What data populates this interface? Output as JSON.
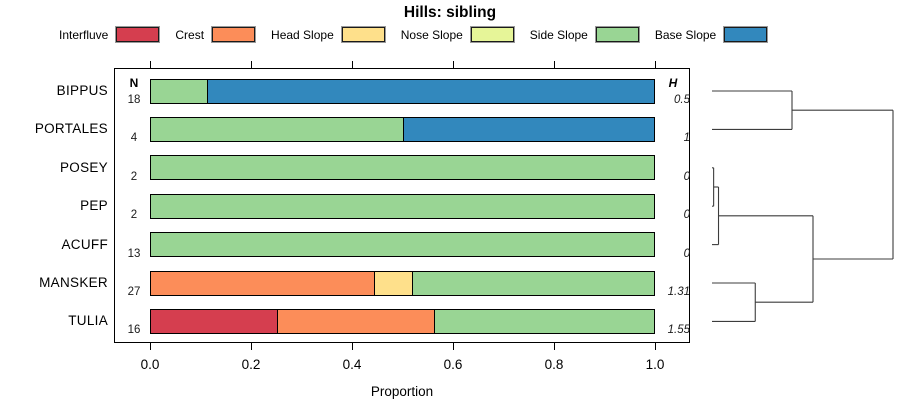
{
  "title": "Hills: sibling",
  "legend": {
    "items": [
      {
        "label": "Interfluve",
        "color": "#d53e4f"
      },
      {
        "label": "Crest",
        "color": "#fc8d59"
      },
      {
        "label": "Head Slope",
        "color": "#fee08b"
      },
      {
        "label": "Nose Slope",
        "color": "#e6f598"
      },
      {
        "label": "Side Slope",
        "color": "#99d594"
      },
      {
        "label": "Base Slope",
        "color": "#3288bd"
      }
    ]
  },
  "table": {
    "n_header": "N",
    "h_header": "H"
  },
  "x_axis": {
    "label": "Proportion",
    "ticks": [
      0.0,
      0.2,
      0.4,
      0.6,
      0.8,
      1.0
    ]
  },
  "chart_data": {
    "type": "bar",
    "subtype": "horizontal-stacked-proportion",
    "title": "Hills: sibling",
    "xlabel": "Proportion",
    "xlim": [
      0,
      1
    ],
    "legend_position": "top",
    "categories": [
      "Interfluve",
      "Crest",
      "Head Slope",
      "Nose Slope",
      "Side Slope",
      "Base Slope"
    ],
    "colors": {
      "Interfluve": "#d53e4f",
      "Crest": "#fc8d59",
      "Head Slope": "#fee08b",
      "Nose Slope": "#e6f598",
      "Side Slope": "#99d594",
      "Base Slope": "#3288bd"
    },
    "rows": [
      {
        "name": "BIPPUS",
        "n": 18,
        "h": "0.5",
        "segments": [
          [
            "Side Slope",
            0.111
          ],
          [
            "Base Slope",
            0.889
          ]
        ]
      },
      {
        "name": "PORTALES",
        "n": 4,
        "h": "1",
        "segments": [
          [
            "Side Slope",
            0.5
          ],
          [
            "Base Slope",
            0.5
          ]
        ]
      },
      {
        "name": "POSEY",
        "n": 2,
        "h": "0",
        "segments": [
          [
            "Side Slope",
            1.0
          ]
        ]
      },
      {
        "name": "PEP",
        "n": 2,
        "h": "0",
        "segments": [
          [
            "Side Slope",
            1.0
          ]
        ]
      },
      {
        "name": "ACUFF",
        "n": 13,
        "h": "0",
        "segments": [
          [
            "Side Slope",
            1.0
          ]
        ]
      },
      {
        "name": "MANSKER",
        "n": 27,
        "h": "1.31",
        "segments": [
          [
            "Crest",
            0.444
          ],
          [
            "Head Slope",
            0.075
          ],
          [
            "Side Slope",
            0.481
          ]
        ]
      },
      {
        "name": "TULIA",
        "n": 16,
        "h": "1.55",
        "segments": [
          [
            "Interfluve",
            0.25
          ],
          [
            "Crest",
            0.3125
          ],
          [
            "Side Slope",
            0.4375
          ]
        ]
      }
    ],
    "dendrogram": {
      "height": 1.0,
      "children": [
        {
          "height": 0.442,
          "children": [
            {
              "leaf": "BIPPUS"
            },
            {
              "leaf": "PORTALES"
            }
          ]
        },
        {
          "height": 0.558,
          "children": [
            {
              "height": 0.036,
              "children": [
                {
                  "height": 0.009,
                  "children": [
                    {
                      "leaf": "POSEY"
                    },
                    {
                      "leaf": "PEP"
                    }
                  ]
                },
                {
                  "leaf": "ACUFF"
                }
              ]
            },
            {
              "height": 0.239,
              "children": [
                {
                  "leaf": "MANSKER"
                },
                {
                  "leaf": "TULIA"
                }
              ]
            }
          ]
        }
      ]
    }
  }
}
